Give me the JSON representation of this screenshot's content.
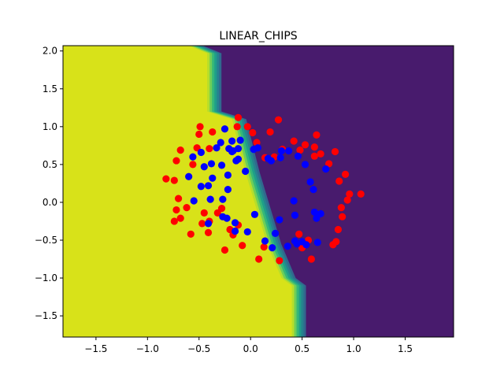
{
  "chart_data": {
    "type": "scatter",
    "title": "LINEAR_CHIPS",
    "xlabel": "",
    "ylabel": "",
    "xlim": [
      -1.82,
      1.97
    ],
    "ylim": [
      -1.78,
      2.07
    ],
    "xticks": [
      -1.5,
      -1.0,
      -0.5,
      0.0,
      0.5,
      1.0,
      1.5
    ],
    "xtick_labels": [
      "−1.5",
      "−1.0",
      "−0.5",
      "0.0",
      "0.5",
      "1.0",
      "1.5"
    ],
    "yticks": [
      -1.5,
      -1.0,
      -0.5,
      0.0,
      0.5,
      1.0,
      1.5,
      2.0
    ],
    "ytick_labels": [
      "−1.5",
      "−1.0",
      "−0.5",
      "0.0",
      "0.5",
      "1.0",
      "1.5",
      "2.0"
    ],
    "grid": false,
    "decision_region": {
      "left_color": "#d8e219",
      "right_color": "#481b6d",
      "boundary_colors": [
        "#b5de2b",
        "#6ece58",
        "#35b779",
        "#1f9e89",
        "#26828e",
        "#31688e"
      ],
      "boundary": [
        {
          "y": 2.07,
          "x": -0.6
        },
        {
          "y": 1.97,
          "x": -0.42
        },
        {
          "y": 1.2,
          "x": -0.42
        },
        {
          "y": 1.1,
          "x": -0.18
        },
        {
          "y": 0.4,
          "x": -0.05
        },
        {
          "y": -0.55,
          "x": 0.16
        },
        {
          "y": -1.0,
          "x": 0.3
        },
        {
          "y": -1.1,
          "x": 0.4
        },
        {
          "y": -1.78,
          "x": 0.4
        }
      ]
    },
    "series": [
      {
        "color": "#ff0000",
        "points": [
          [
            -0.82,
            0.31
          ],
          [
            -0.74,
            0.29
          ],
          [
            -0.74,
            -0.25
          ],
          [
            -0.72,
            -0.1
          ],
          [
            -0.7,
            0.05
          ],
          [
            -0.68,
            -0.21
          ],
          [
            -0.68,
            0.69
          ],
          [
            -0.72,
            0.55
          ],
          [
            -0.62,
            -0.07
          ],
          [
            -0.58,
            -0.42
          ],
          [
            -0.56,
            0.5
          ],
          [
            -0.52,
            0.72
          ],
          [
            -0.49,
            1.0
          ],
          [
            -0.5,
            0.9
          ],
          [
            -0.47,
            -0.28
          ],
          [
            -0.45,
            -0.14
          ],
          [
            -0.4,
            -0.25
          ],
          [
            -0.41,
            -0.4
          ],
          [
            -0.4,
            0.71
          ],
          [
            -0.37,
            0.93
          ],
          [
            -0.32,
            -0.14
          ],
          [
            -0.28,
            -0.08
          ],
          [
            -0.25,
            -0.63
          ],
          [
            -0.2,
            -0.36
          ],
          [
            -0.17,
            -0.43
          ],
          [
            -0.12,
            -0.3
          ],
          [
            -0.13,
            1.0
          ],
          [
            -0.12,
            1.12
          ],
          [
            -0.08,
            -0.57
          ],
          [
            -0.03,
            1.0
          ],
          [
            0.02,
            0.92
          ],
          [
            0.06,
            0.79
          ],
          [
            0.08,
            -0.75
          ],
          [
            0.13,
            -0.59
          ],
          [
            0.19,
            0.93
          ],
          [
            0.23,
            0.6
          ],
          [
            0.27,
            1.09
          ],
          [
            0.28,
            -0.77
          ],
          [
            0.31,
            0.7
          ],
          [
            0.42,
            0.81
          ],
          [
            0.47,
            -0.42
          ],
          [
            0.48,
            0.69
          ],
          [
            0.5,
            -0.6
          ],
          [
            0.53,
            0.76
          ],
          [
            0.56,
            -0.5
          ],
          [
            0.59,
            -0.75
          ],
          [
            0.62,
            0.61
          ],
          [
            0.62,
            0.73
          ],
          [
            0.64,
            0.89
          ],
          [
            0.68,
            0.64
          ],
          [
            0.76,
            0.51
          ],
          [
            0.8,
            -0.56
          ],
          [
            0.82,
            0.67
          ],
          [
            0.83,
            -0.52
          ],
          [
            0.85,
            -0.36
          ],
          [
            0.86,
            0.28
          ],
          [
            0.88,
            -0.07
          ],
          [
            0.89,
            -0.19
          ],
          [
            0.92,
            0.37
          ],
          [
            0.94,
            0.03
          ],
          [
            0.96,
            0.11
          ],
          [
            1.07,
            0.11
          ],
          [
            0.14,
            0.59
          ]
        ]
      },
      {
        "color": "#0000ff",
        "points": [
          [
            -0.6,
            0.34
          ],
          [
            -0.56,
            0.6
          ],
          [
            -0.55,
            0.02
          ],
          [
            -0.48,
            0.21
          ],
          [
            -0.48,
            0.66
          ],
          [
            -0.45,
            0.47
          ],
          [
            -0.41,
            0.22
          ],
          [
            -0.41,
            -0.28
          ],
          [
            -0.39,
            0.04
          ],
          [
            -0.38,
            0.51
          ],
          [
            -0.37,
            0.32
          ],
          [
            -0.33,
            0.72
          ],
          [
            -0.29,
            0.79
          ],
          [
            -0.27,
            0.04
          ],
          [
            -0.27,
            -0.19
          ],
          [
            -0.28,
            0.49
          ],
          [
            -0.25,
            0.97
          ],
          [
            -0.23,
            -0.21
          ],
          [
            -0.22,
            0.17
          ],
          [
            -0.22,
            0.36
          ],
          [
            -0.21,
            0.71
          ],
          [
            -0.18,
            0.67
          ],
          [
            -0.18,
            0.81
          ],
          [
            -0.17,
            0.68
          ],
          [
            -0.15,
            -0.27
          ],
          [
            -0.15,
            -0.38
          ],
          [
            -0.14,
            0.55
          ],
          [
            -0.12,
            0.71
          ],
          [
            -0.12,
            0.57
          ],
          [
            -0.1,
            0.82
          ],
          [
            -0.05,
            0.41
          ],
          [
            -0.03,
            -0.39
          ],
          [
            0.03,
            0.7
          ],
          [
            0.04,
            -0.16
          ],
          [
            0.07,
            0.72
          ],
          [
            0.14,
            -0.51
          ],
          [
            0.17,
            0.58
          ],
          [
            0.2,
            0.55
          ],
          [
            0.21,
            -0.6
          ],
          [
            0.24,
            -0.41
          ],
          [
            0.28,
            -0.23
          ],
          [
            0.29,
            0.59
          ],
          [
            0.3,
            0.68
          ],
          [
            0.37,
            0.68
          ],
          [
            0.36,
            -0.58
          ],
          [
            0.42,
            0.02
          ],
          [
            0.43,
            -0.51
          ],
          [
            0.43,
            -0.17
          ],
          [
            0.45,
            -0.55
          ],
          [
            0.5,
            -0.52
          ],
          [
            0.53,
            0.5
          ],
          [
            0.54,
            -0.56
          ],
          [
            0.58,
            0.27
          ],
          [
            0.61,
            0.17
          ],
          [
            0.62,
            -0.13
          ],
          [
            0.64,
            -0.21
          ],
          [
            0.65,
            -0.53
          ],
          [
            0.68,
            -0.15
          ],
          [
            0.73,
            0.44
          ],
          [
            0.46,
            0.61
          ]
        ]
      }
    ]
  }
}
